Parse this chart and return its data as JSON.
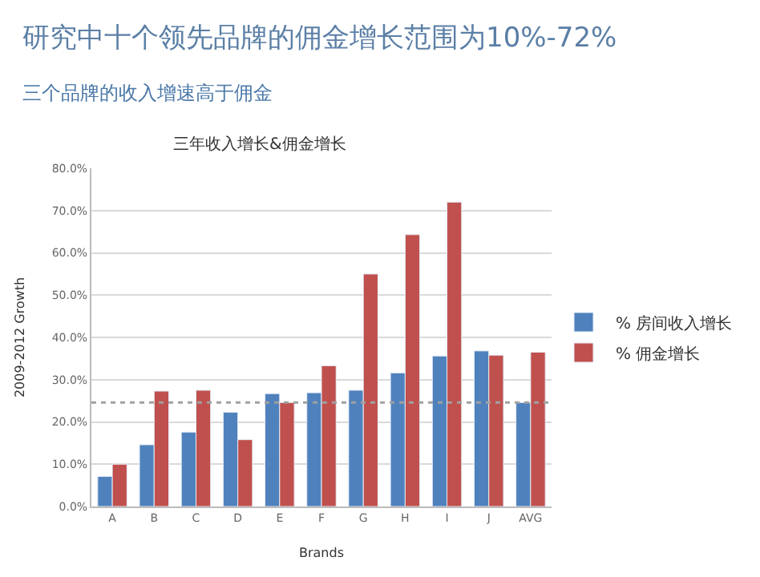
{
  "chart_data": {
    "type": "bar",
    "title": "研究中十个领先品牌的佣金增长范围为10%-72%",
    "subtitle": "三个品牌的收入增速高于佣金",
    "annotations": [
      "三年收入增长&佣金增长"
    ],
    "xlabel": "Brands",
    "ylabel": "2009-2012 Growth",
    "categories": [
      "A",
      "B",
      "C",
      "D",
      "E",
      "F",
      "G",
      "H",
      "I",
      "J",
      "AVG"
    ],
    "series": [
      {
        "name": "% 房间收入增长",
        "color": "#4f81bd",
        "values": [
          7.1,
          14.6,
          17.6,
          22.3,
          26.7,
          26.9,
          27.5,
          31.6,
          35.6,
          36.8,
          24.6
        ]
      },
      {
        "name": "% 佣金增长",
        "color": "#c0504d",
        "values": [
          10.0,
          27.3,
          27.5,
          15.8,
          24.6,
          33.3,
          55.0,
          64.3,
          72.0,
          35.8,
          36.5
        ]
      }
    ],
    "ylim": [
      0,
      80
    ],
    "yticks": [
      {
        "value": 0,
        "label": "0.0%"
      },
      {
        "value": 10,
        "label": "10.0%"
      },
      {
        "value": 20,
        "label": "20.0%"
      },
      {
        "value": 30,
        "label": "30.0%"
      },
      {
        "value": 40,
        "label": "40.0%"
      },
      {
        "value": 50,
        "label": "50.0%"
      },
      {
        "value": 60,
        "label": "60.0%"
      },
      {
        "value": 70,
        "label": "70.0%"
      },
      {
        "value": 80,
        "label": "80.0%"
      }
    ],
    "ref_lines": [
      {
        "axis": "y",
        "value": 24.6,
        "label": null,
        "color": "#a0a0a0",
        "line_style": "dotted"
      }
    ],
    "grid": "y",
    "legend": "right"
  }
}
